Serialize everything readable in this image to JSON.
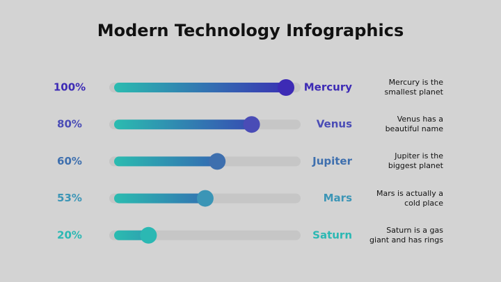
{
  "title": "Modern Technology Infographics",
  "rows": [
    {
      "value": 100,
      "label": "100%",
      "name": "Mercury",
      "description": "Mercury is the smallest planet",
      "color": "#3d2bb5"
    },
    {
      "value": 80,
      "label": "80%",
      "name": "Venus",
      "description": "Venus has a beautiful name",
      "color": "#4a4cb6"
    },
    {
      "value": 60,
      "label": "60%",
      "name": "Jupiter",
      "description": "Jupiter is the biggest planet",
      "color": "#3e6fae"
    },
    {
      "value": 53,
      "label": "53%",
      "name": "Mars",
      "description": "Mars is actually a cold place",
      "color": "#3b95b6"
    },
    {
      "value": 20,
      "label": "20%",
      "name": "Saturn",
      "description": "Saturn is a gas giant and has rings",
      "color": "#2bb8b3"
    }
  ]
}
